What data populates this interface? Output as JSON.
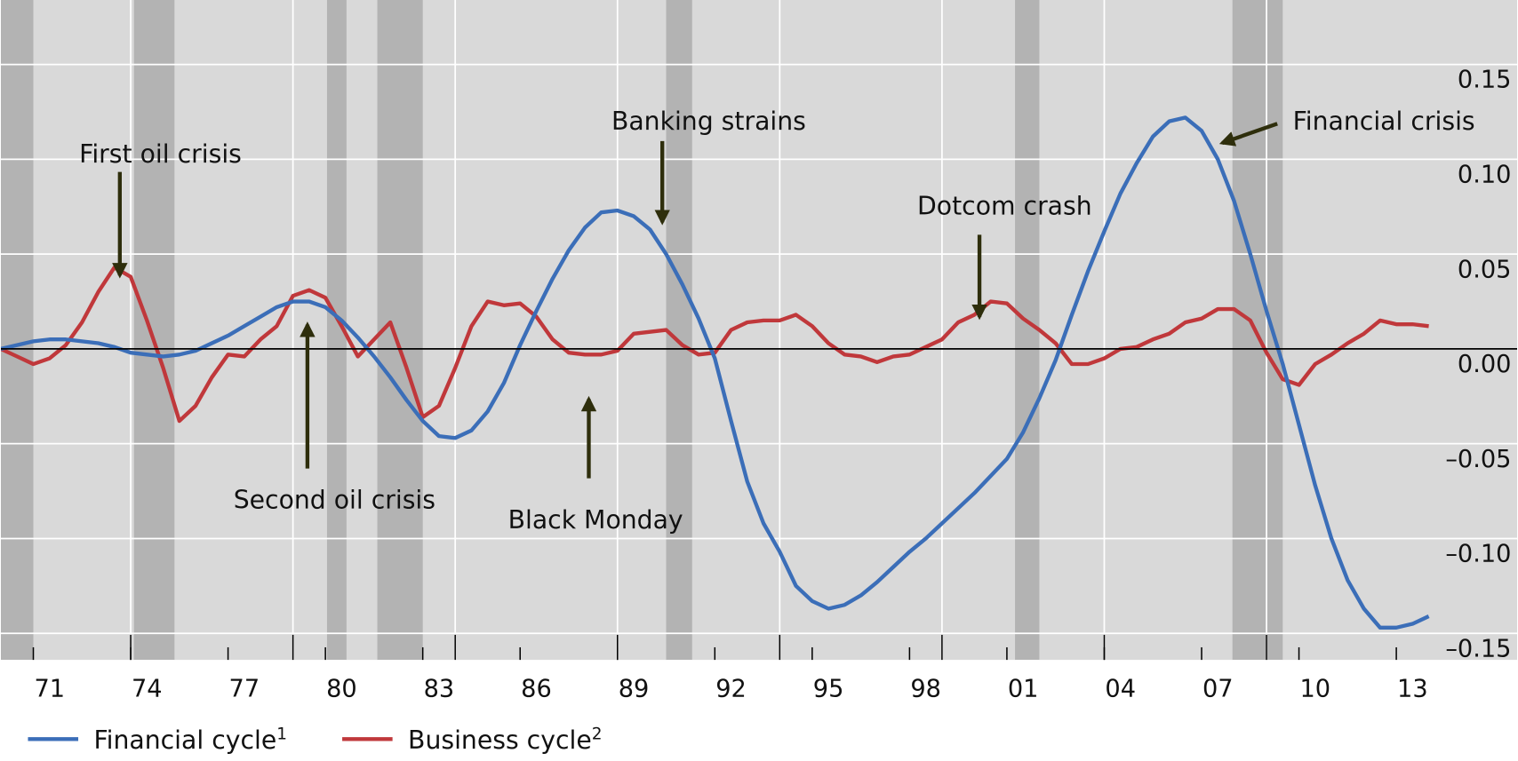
{
  "chart_data": {
    "type": "line",
    "x": [
      1970,
      1970.5,
      1971,
      1971.5,
      1972,
      1972.5,
      1973,
      1973.5,
      1974,
      1974.5,
      1975,
      1975.5,
      1976,
      1976.5,
      1977,
      1977.5,
      1978,
      1978.5,
      1979,
      1979.5,
      1980,
      1980.5,
      1981,
      1981.5,
      1982,
      1982.5,
      1983,
      1983.5,
      1984,
      1984.5,
      1985,
      1985.5,
      1986,
      1986.5,
      1987,
      1987.5,
      1988,
      1988.5,
      1989,
      1989.5,
      1990,
      1990.5,
      1991,
      1991.5,
      1992,
      1992.5,
      1993,
      1993.5,
      1994,
      1994.5,
      1995,
      1995.5,
      1996,
      1996.5,
      1997,
      1997.5,
      1998,
      1998.5,
      1999,
      1999.5,
      2000,
      2000.5,
      2001,
      2001.5,
      2002,
      2002.5,
      2003,
      2003.5,
      2004,
      2004.5,
      2005,
      2005.5,
      2006,
      2006.5,
      2007,
      2007.5,
      2008,
      2008.5,
      2009,
      2009.5,
      2010,
      2010.5,
      2011,
      2011.5,
      2012,
      2012.5,
      2013,
      2013.5,
      2014
    ],
    "series": [
      {
        "name": "Financial cycle",
        "note": "1",
        "color": "#3b6eb8",
        "values": [
          0.0,
          0.002,
          0.004,
          0.005,
          0.005,
          0.004,
          0.003,
          0.001,
          -0.002,
          -0.003,
          -0.004,
          -0.003,
          -0.001,
          0.003,
          0.007,
          0.012,
          0.017,
          0.022,
          0.025,
          0.025,
          0.022,
          0.015,
          0.006,
          -0.004,
          -0.015,
          -0.027,
          -0.038,
          -0.046,
          -0.047,
          -0.043,
          -0.033,
          -0.018,
          0.002,
          0.02,
          0.037,
          0.052,
          0.064,
          0.072,
          0.073,
          0.07,
          0.063,
          0.05,
          0.034,
          0.016,
          -0.005,
          -0.038,
          -0.07,
          -0.092,
          -0.107,
          -0.125,
          -0.133,
          -0.137,
          -0.135,
          -0.13,
          -0.123,
          -0.115,
          -0.107,
          -0.1,
          -0.092,
          -0.084,
          -0.076,
          -0.067,
          -0.058,
          -0.044,
          -0.026,
          -0.006,
          0.018,
          0.041,
          0.062,
          0.082,
          0.098,
          0.112,
          0.12,
          0.122,
          0.115,
          0.1,
          0.078,
          0.05,
          0.02,
          -0.008,
          -0.04,
          -0.072,
          -0.1,
          -0.122,
          -0.137,
          -0.147,
          -0.147,
          -0.145,
          -0.141
        ]
      },
      {
        "name": "Business cycle",
        "note": "2",
        "color": "#c0383b",
        "values": [
          0.0,
          -0.004,
          -0.008,
          -0.005,
          0.002,
          0.014,
          0.03,
          0.043,
          0.038,
          0.015,
          -0.01,
          -0.038,
          -0.03,
          -0.015,
          -0.003,
          -0.004,
          0.005,
          0.012,
          0.028,
          0.031,
          0.027,
          0.012,
          -0.004,
          0.005,
          0.014,
          -0.01,
          -0.036,
          -0.03,
          -0.01,
          0.012,
          0.025,
          0.023,
          0.024,
          0.017,
          0.005,
          -0.002,
          -0.003,
          -0.003,
          -0.001,
          0.008,
          0.009,
          0.01,
          0.002,
          -0.003,
          -0.002,
          0.01,
          0.014,
          0.015,
          0.015,
          0.018,
          0.012,
          0.003,
          -0.003,
          -0.004,
          -0.007,
          -0.004,
          -0.003,
          0.001,
          0.005,
          0.014,
          0.018,
          0.025,
          0.024,
          0.016,
          0.01,
          0.003,
          -0.008,
          -0.008,
          -0.005,
          0.0,
          0.001,
          0.005,
          0.008,
          0.014,
          0.016,
          0.021,
          0.021,
          0.015,
          -0.002,
          -0.016,
          -0.019,
          -0.008,
          -0.003,
          0.003,
          0.008,
          0.015,
          0.013,
          0.013,
          0.012
        ]
      }
    ],
    "xlim": [
      1970,
      2014.1
    ],
    "xticks": [
      {
        "value": 1971,
        "label": "71"
      },
      {
        "value": 1974,
        "label": "74"
      },
      {
        "value": 1977,
        "label": "77"
      },
      {
        "value": 1980,
        "label": "80"
      },
      {
        "value": 1983,
        "label": "83"
      },
      {
        "value": 1986,
        "label": "86"
      },
      {
        "value": 1989,
        "label": "89"
      },
      {
        "value": 1992,
        "label": "92"
      },
      {
        "value": 1995,
        "label": "95"
      },
      {
        "value": 1998,
        "label": "98"
      },
      {
        "value": 2001,
        "label": "01"
      },
      {
        "value": 2004,
        "label": "04"
      },
      {
        "value": 2007,
        "label": "07"
      },
      {
        "value": 2010,
        "label": "10"
      },
      {
        "value": 2013,
        "label": "13"
      }
    ],
    "xgrid": [
      1974,
      1979,
      1984,
      1989,
      1994,
      1999,
      2004,
      2009
    ],
    "ylim": [
      -0.164,
      0.184
    ],
    "yticks": [
      {
        "value": 0.15,
        "label": "0.15"
      },
      {
        "value": 0.1,
        "label": "0.10"
      },
      {
        "value": 0.05,
        "label": "0.05"
      },
      {
        "value": 0,
        "label": "0.00"
      },
      {
        "value": -0.05,
        "label": "–0.05"
      },
      {
        "value": -0.1,
        "label": "–0.10"
      },
      {
        "value": -0.15,
        "label": "–0.15"
      }
    ],
    "y_axis_side": "right",
    "grid": true,
    "shaded_periods": [
      [
        1970,
        1971
      ],
      [
        1974.1,
        1975.35
      ],
      [
        1980.05,
        1980.65
      ],
      [
        1981.6,
        1983.0
      ],
      [
        1990.5,
        1991.3
      ],
      [
        2001.25,
        2002.0
      ],
      [
        2007.95,
        2009.5
      ]
    ],
    "annotations": [
      {
        "text": "First oil crisis"
      },
      {
        "text": "Second oil crisis"
      },
      {
        "text": "Black Monday"
      },
      {
        "text": "Banking strains"
      },
      {
        "text": "Dotcom crash"
      },
      {
        "text": "Financial crisis"
      }
    ],
    "legend": "bottom-left"
  }
}
